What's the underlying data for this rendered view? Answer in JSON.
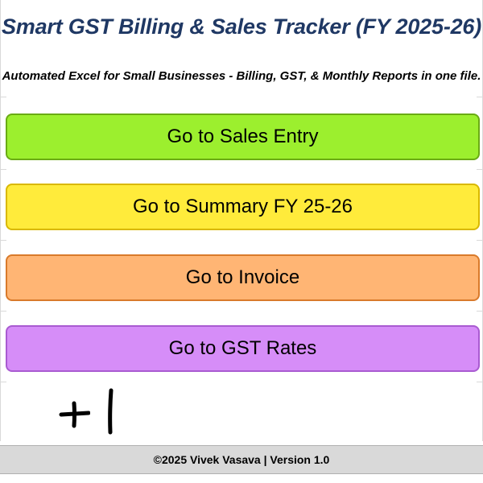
{
  "header": {
    "title": "Smart GST Billing & Sales Tracker (FY 2025-26)",
    "subtitle": "Automated Excel for Small Businesses - Billing, GST, & Monthly Reports in one file."
  },
  "buttons": {
    "sales_entry": "Go to Sales Entry",
    "summary": "Go to Summary FY 25-26",
    "invoice": "Go to Invoice",
    "gst_rates": "Go to GST Rates"
  },
  "colors": {
    "title": "#1f3864",
    "sales_entry": "#9cef2e",
    "summary": "#ffeb3b",
    "invoice": "#ffb574",
    "gst_rates": "#d68df8",
    "footer": "#d9d9d9"
  },
  "footer": {
    "text": "©2025 Vivek Vasava | Version 1.0"
  }
}
